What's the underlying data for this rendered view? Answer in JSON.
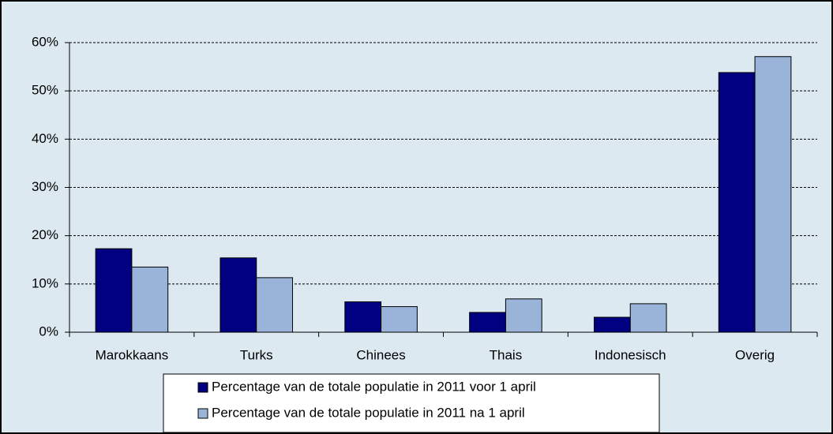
{
  "chart_data": {
    "type": "bar",
    "categories": [
      "Marokkaans",
      "Turks",
      "Chinees",
      "Thais",
      "Indonesisch",
      "Overig"
    ],
    "series": [
      {
        "name": "Percentage van de totale populatie in 2011 voor 1 april",
        "color": "#000080",
        "values": [
          17.3,
          15.4,
          6.3,
          4.1,
          3.1,
          53.8
        ]
      },
      {
        "name": "Percentage van de totale populatie in 2011 na 1 april",
        "color": "#99b3d9",
        "values": [
          13.5,
          11.3,
          5.3,
          6.9,
          5.9,
          57.1
        ]
      }
    ],
    "ylim": [
      0,
      60
    ],
    "yticks": [
      {
        "value": 0,
        "label": "0%"
      },
      {
        "value": 10,
        "label": "10%"
      },
      {
        "value": 20,
        "label": "20%"
      },
      {
        "value": 30,
        "label": "30%"
      },
      {
        "value": 40,
        "label": "40%"
      },
      {
        "value": 50,
        "label": "50%"
      },
      {
        "value": 60,
        "label": "60%"
      }
    ],
    "grid": true,
    "legend": "bottom"
  }
}
